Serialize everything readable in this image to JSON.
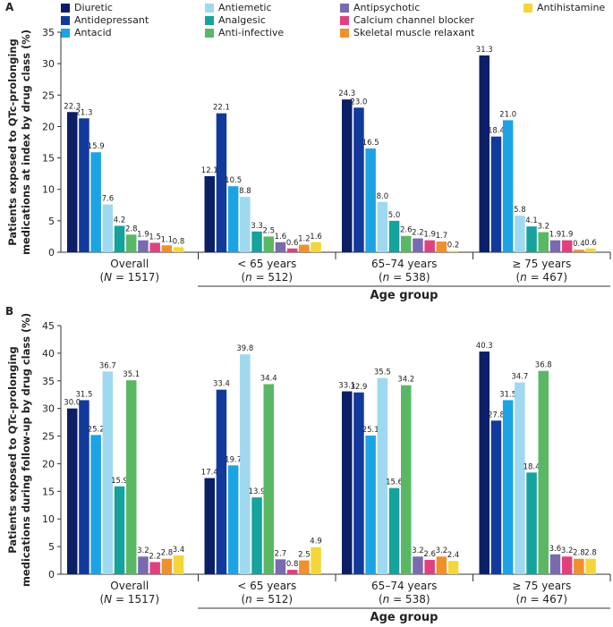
{
  "legend": [
    {
      "name": "Diuretic",
      "color": "#0b1f66"
    },
    {
      "name": "Antidepressant",
      "color": "#123a9c"
    },
    {
      "name": "Antacid",
      "color": "#1ca3e4"
    },
    {
      "name": "Antiemetic",
      "color": "#9fd9ef"
    },
    {
      "name": "Analgesic",
      "color": "#14a39d"
    },
    {
      "name": "Anti-infective",
      "color": "#5ab865"
    },
    {
      "name": "Antipsychotic",
      "color": "#7a6ab0"
    },
    {
      "name": "Calcium channel blocker",
      "color": "#e0407d"
    },
    {
      "name": "Skeletal muscle relaxant",
      "color": "#f0902a"
    },
    {
      "name": "Antihistamine",
      "color": "#f5d63a"
    }
  ],
  "chart_data": [
    {
      "type": "bar",
      "panel_label": "A",
      "ylabel_lines": [
        "Patients exposed to QTc-prolonging",
        "medications at index by drug class (%)"
      ],
      "ylim": [
        0,
        35
      ],
      "yticks": [
        0,
        5,
        10,
        15,
        20,
        25,
        30,
        35
      ],
      "xlabel": "Age group",
      "categories": [
        {
          "line1": "Overall",
          "n_prefix": "N",
          "n_suffix": " = 1517"
        },
        {
          "line1": "< 65 years",
          "n_prefix": "n",
          "n_suffix": " = 512"
        },
        {
          "line1": "65–74 years",
          "n_prefix": "n",
          "n_suffix": " = 538"
        },
        {
          "line1": "≥ 75 years",
          "n_prefix": "n",
          "n_suffix": " = 467"
        }
      ],
      "series": [
        {
          "name": "Diuretic",
          "values": [
            22.3,
            12.1,
            24.3,
            31.3
          ]
        },
        {
          "name": "Antidepressant",
          "values": [
            21.3,
            22.1,
            23.0,
            18.4
          ]
        },
        {
          "name": "Antacid",
          "values": [
            15.9,
            10.5,
            16.5,
            21.0
          ]
        },
        {
          "name": "Antiemetic",
          "values": [
            7.6,
            8.8,
            8.0,
            5.8
          ]
        },
        {
          "name": "Analgesic",
          "values": [
            4.2,
            3.3,
            5.0,
            4.1
          ]
        },
        {
          "name": "Anti-infective",
          "values": [
            2.8,
            2.5,
            2.6,
            3.2
          ]
        },
        {
          "name": "Antipsychotic",
          "values": [
            1.9,
            1.6,
            2.2,
            1.9
          ]
        },
        {
          "name": "Calcium channel blocker",
          "values": [
            1.5,
            0.6,
            1.9,
            1.9
          ]
        },
        {
          "name": "Skeletal muscle relaxant",
          "values": [
            1.1,
            1.2,
            1.7,
            0.4
          ]
        },
        {
          "name": "Antihistamine",
          "values": [
            0.8,
            1.6,
            0.2,
            0.6
          ]
        }
      ],
      "labels": [
        [
          "22.3",
          "21.3",
          "15.9",
          "7.6",
          "4.2",
          "2.8",
          "1.9",
          "1.5",
          "1.1",
          "0.8"
        ],
        [
          "12.1",
          "22.1",
          "10.5",
          "8.8",
          "3.3",
          "2.5",
          "1.6",
          "0.6",
          "1.2",
          "1.6"
        ],
        [
          "24.3",
          "23.0",
          "16.5",
          "8.0",
          "5.0",
          "2.6",
          "2.2",
          "1.9",
          "1.7",
          "0.2"
        ],
        [
          "31.3",
          "18.4",
          "21.0",
          "5.8",
          "4.1",
          "3.2",
          "1.9",
          "1.9",
          "0.4",
          "0.6"
        ]
      ]
    },
    {
      "type": "bar",
      "panel_label": "B",
      "ylabel_lines": [
        "Patients exposed to QTc-prolonging",
        "medications during follow-up by drug class (%)"
      ],
      "ylim": [
        0,
        45
      ],
      "yticks": [
        0,
        5,
        10,
        15,
        20,
        25,
        30,
        35,
        40,
        45
      ],
      "xlabel": "Age group",
      "categories": [
        {
          "line1": "Overall",
          "n_prefix": "N",
          "n_suffix": " = 1517"
        },
        {
          "line1": "< 65 years",
          "n_prefix": "n",
          "n_suffix": " = 512"
        },
        {
          "line1": "65–74 years",
          "n_prefix": "n",
          "n_suffix": " = 538"
        },
        {
          "line1": "≥ 75 years",
          "n_prefix": "n",
          "n_suffix": " = 467"
        }
      ],
      "series": [
        {
          "name": "Diuretic",
          "values": [
            30.0,
            17.4,
            33.1,
            40.3
          ]
        },
        {
          "name": "Antidepressant",
          "values": [
            31.5,
            33.4,
            32.9,
            27.8
          ]
        },
        {
          "name": "Antacid",
          "values": [
            25.2,
            19.7,
            25.1,
            31.5
          ]
        },
        {
          "name": "Antiemetic",
          "values": [
            36.7,
            39.8,
            35.5,
            34.7
          ]
        },
        {
          "name": "Analgesic",
          "values": [
            15.9,
            13.9,
            15.6,
            18.4
          ]
        },
        {
          "name": "Anti-infective",
          "values": [
            35.1,
            34.4,
            34.2,
            36.8
          ]
        },
        {
          "name": "Antipsychotic",
          "values": [
            3.2,
            2.7,
            3.2,
            3.6
          ]
        },
        {
          "name": "Calcium channel blocker",
          "values": [
            2.2,
            0.8,
            2.6,
            3.2
          ]
        },
        {
          "name": "Skeletal muscle relaxant",
          "values": [
            2.8,
            2.5,
            3.2,
            2.8
          ]
        },
        {
          "name": "Antihistamine",
          "values": [
            3.4,
            4.9,
            2.4,
            2.8
          ]
        }
      ],
      "labels": [
        [
          "30.0",
          "31.5",
          "25.2",
          "36.7",
          "15.9",
          "35.1",
          "3.2",
          "2.2",
          "2.8",
          "3.4"
        ],
        [
          "17.4",
          "33.4",
          "19.7",
          "39.8",
          "13.9",
          "34.4",
          "2.7",
          "0.8",
          "2.5",
          "4.9"
        ],
        [
          "33.1",
          "32.9",
          "25.1",
          "35.5",
          "15.6",
          "34.2",
          "3.2",
          "2.6",
          "3.2",
          "2.4"
        ],
        [
          "40.3",
          "27.8",
          "31.5",
          "34.7",
          "18.4",
          "36.8",
          "3.6",
          "3.2",
          "2.8",
          "2.8"
        ]
      ]
    }
  ]
}
